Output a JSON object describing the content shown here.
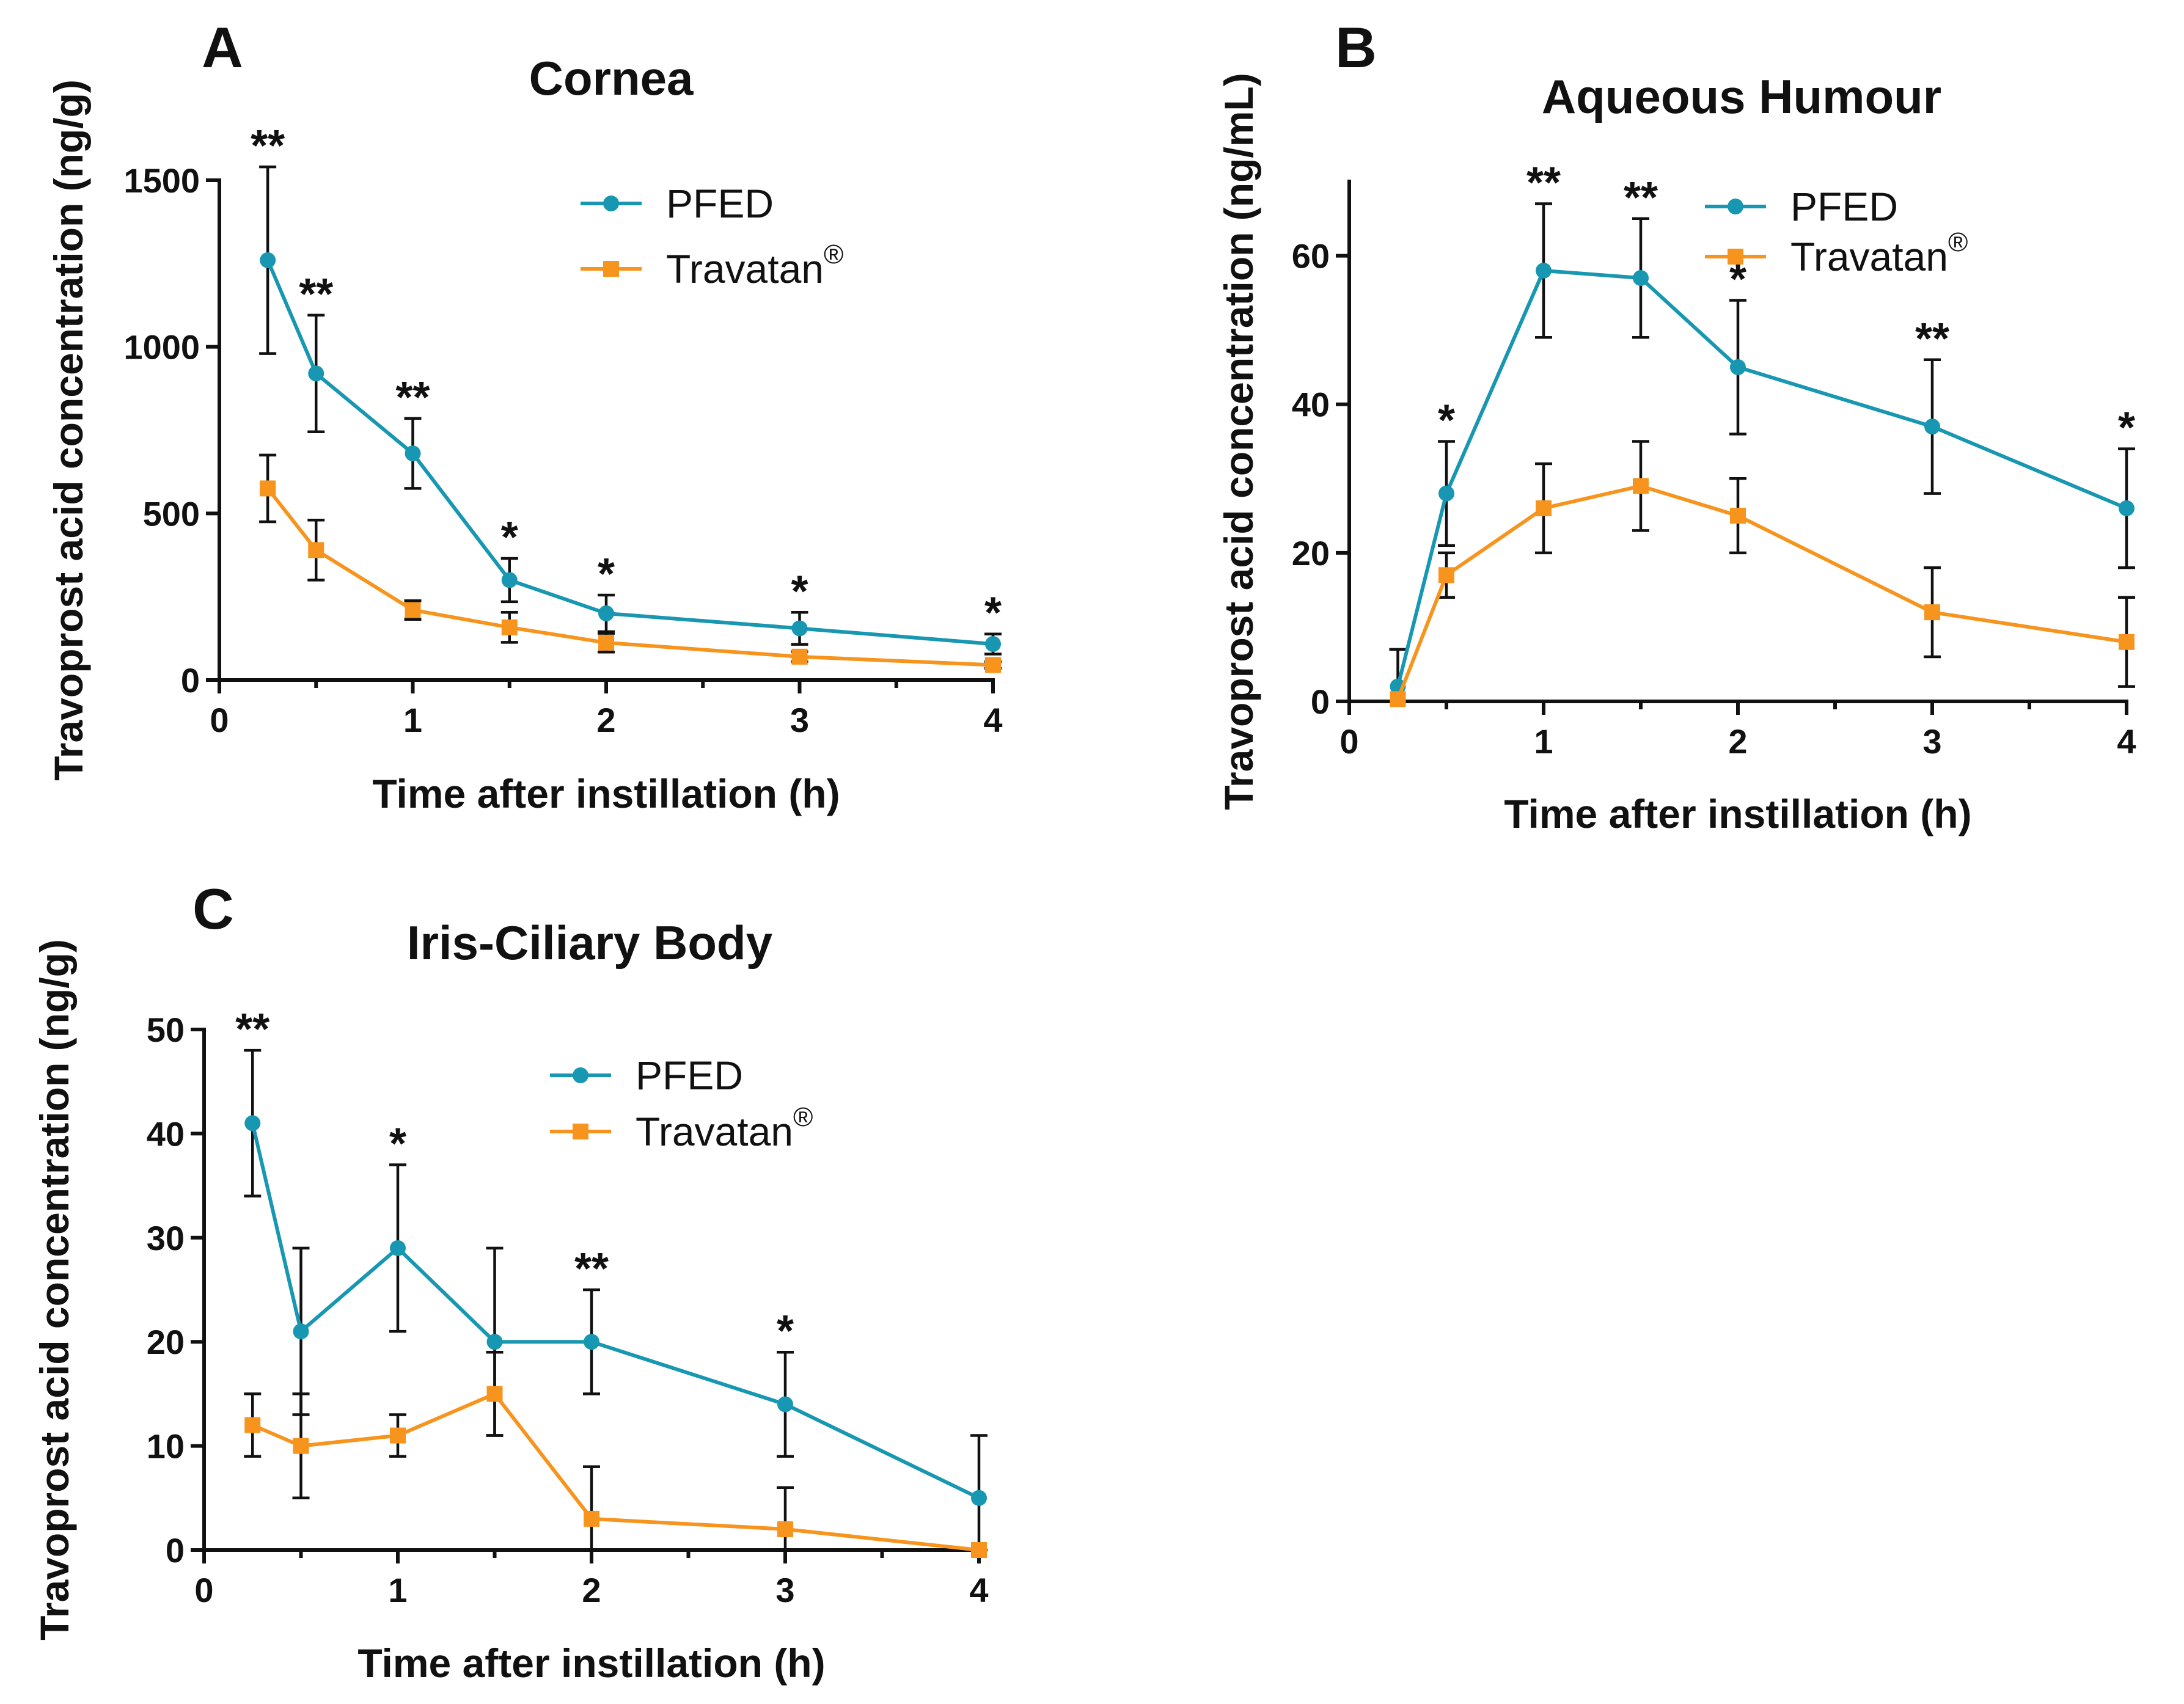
{
  "colors": {
    "pfed": "#1797b1",
    "travatan": "#f7941d",
    "axis": "#111111"
  },
  "chart_data": [
    {
      "type": "line",
      "panel": "A",
      "title": "Cornea",
      "xlabel": "Time after instillation (h)",
      "ylabel": "Travoprost acid concentration (ng/g)",
      "xlim": [
        0,
        4
      ],
      "ylim": [
        0,
        1500
      ],
      "xticks": [
        0,
        1,
        2,
        3,
        4
      ],
      "yticks": [
        0,
        500,
        1000,
        1500
      ],
      "minor_xticks": [
        0.5,
        1.5,
        2.5,
        3.5
      ],
      "legend_position": "top-right",
      "series": [
        {
          "name": "PFED",
          "marker": "circle",
          "x": [
            0.25,
            0.5,
            1,
            1.5,
            2,
            3,
            4
          ],
          "y": [
            1260,
            920,
            680,
            300,
            200,
            155,
            108
          ],
          "err": [
            280,
            175,
            105,
            65,
            55,
            48,
            30
          ]
        },
        {
          "name": "Travatan",
          "superscript": "®",
          "marker": "square",
          "x": [
            0.25,
            0.5,
            1,
            1.5,
            2,
            3,
            4
          ],
          "y": [
            575,
            390,
            210,
            158,
            112,
            70,
            45
          ],
          "err": [
            100,
            90,
            28,
            45,
            28,
            15,
            10
          ]
        }
      ],
      "annotations": [
        {
          "x": 0.25,
          "y": 1540,
          "text": "**"
        },
        {
          "x": 0.5,
          "y": 1095,
          "text": "**"
        },
        {
          "x": 1,
          "y": 785,
          "text": "**"
        },
        {
          "x": 1.5,
          "y": 365,
          "text": "*"
        },
        {
          "x": 2,
          "y": 255,
          "text": "*"
        },
        {
          "x": 3,
          "y": 203,
          "text": "*"
        },
        {
          "x": 4,
          "y": 138,
          "text": "*"
        }
      ]
    },
    {
      "type": "line",
      "panel": "B",
      "title": "Aqueous Humour",
      "xlabel": "Time after instillation (h)",
      "ylabel": "Travoprost acid concentration (ng/mL)",
      "xlim": [
        0,
        4
      ],
      "ylim": [
        0,
        70
      ],
      "xticks": [
        0,
        1,
        2,
        3,
        4
      ],
      "yticks": [
        0,
        20,
        40,
        60
      ],
      "minor_xticks": [
        0.5,
        1.5,
        2.5,
        3.5
      ],
      "legend_position": "top-right",
      "series": [
        {
          "name": "PFED",
          "marker": "circle",
          "x": [
            0.25,
            0.5,
            1,
            1.5,
            2,
            3,
            4
          ],
          "y": [
            2,
            28,
            58,
            57,
            45,
            37,
            26
          ],
          "err": [
            5,
            7,
            9,
            8,
            9,
            9,
            8
          ]
        },
        {
          "name": "Travatan",
          "superscript": "®",
          "marker": "square",
          "x": [
            0.25,
            0.5,
            1,
            1.5,
            2,
            3,
            4
          ],
          "y": [
            0.3,
            17,
            26,
            29,
            25,
            12,
            8
          ],
          "err": [
            0,
            3,
            6,
            6,
            5,
            6,
            6
          ]
        }
      ],
      "annotations": [
        {
          "x": 0.5,
          "y": 35,
          "text": "*"
        },
        {
          "x": 1,
          "y": 67,
          "text": "**"
        },
        {
          "x": 1.5,
          "y": 65,
          "text": "**"
        },
        {
          "x": 2,
          "y": 54,
          "text": "*"
        },
        {
          "x": 3,
          "y": 46,
          "text": "**"
        },
        {
          "x": 4,
          "y": 34,
          "text": "*"
        }
      ]
    },
    {
      "type": "line",
      "panel": "C",
      "title": "Iris-Ciliary Body",
      "xlabel": "Time after instillation (h)",
      "ylabel": "Travoprost acid concentration (ng/g)",
      "xlim": [
        0,
        4
      ],
      "ylim": [
        0,
        50
      ],
      "xticks": [
        0,
        1,
        2,
        3,
        4
      ],
      "yticks": [
        0,
        10,
        20,
        30,
        40,
        50
      ],
      "minor_xticks": [
        0.5,
        1.5,
        2.5,
        3.5
      ],
      "legend_position": "top-right",
      "series": [
        {
          "name": "PFED",
          "marker": "circle",
          "x": [
            0.25,
            0.5,
            1,
            1.5,
            2,
            3,
            4
          ],
          "y": [
            41,
            21,
            29,
            20,
            20,
            14,
            5
          ],
          "err": [
            7,
            8,
            8,
            9,
            5,
            5,
            6
          ]
        },
        {
          "name": "Travatan",
          "superscript": "®",
          "marker": "square",
          "x": [
            0.25,
            0.5,
            1,
            1.5,
            2,
            3,
            4
          ],
          "y": [
            12,
            10,
            11,
            15,
            3,
            2,
            0
          ],
          "err": [
            3,
            5,
            2,
            4,
            5,
            4,
            0
          ]
        }
      ],
      "annotations": [
        {
          "x": 0.25,
          "y": 48,
          "text": "**"
        },
        {
          "x": 1,
          "y": 37,
          "text": "*"
        },
        {
          "x": 2,
          "y": 25,
          "text": "**"
        },
        {
          "x": 3,
          "y": 19,
          "text": "*"
        }
      ]
    }
  ]
}
